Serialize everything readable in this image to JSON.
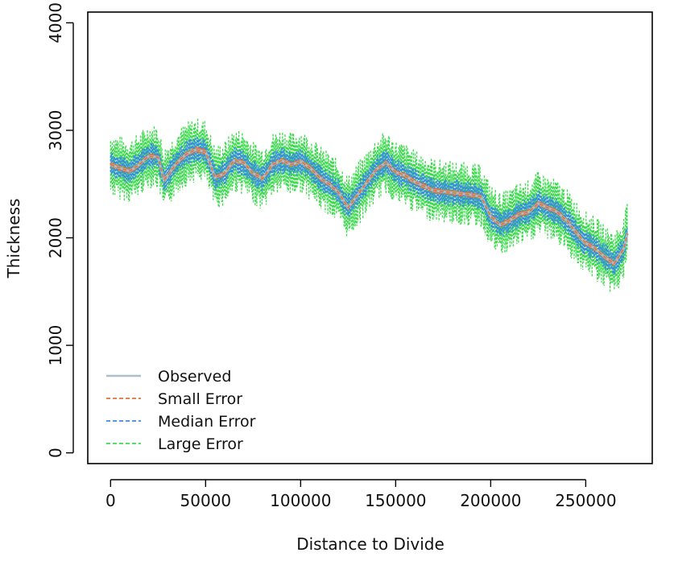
{
  "chart_data": {
    "type": "line",
    "xlabel": "Distance to Divide",
    "ylabel": "Thickness",
    "xlim": [
      -12000,
      285000
    ],
    "ylim": [
      -100,
      4100
    ],
    "x_ticks": [
      0,
      50000,
      100000,
      150000,
      200000,
      250000
    ],
    "x_tick_labels": [
      "0",
      "50000",
      "100000",
      "150000",
      "200000",
      "250000"
    ],
    "y_ticks": [
      0,
      1000,
      2000,
      3000,
      4000
    ],
    "y_tick_labels": [
      "0",
      "1000",
      "2000",
      "3000",
      "4000"
    ],
    "grid": false,
    "legend_position": "bottom-left",
    "x": [
      0,
      5000,
      10000,
      15000,
      20000,
      25000,
      28000,
      30000,
      35000,
      40000,
      45000,
      50000,
      55000,
      60000,
      65000,
      70000,
      75000,
      80000,
      85000,
      90000,
      95000,
      100000,
      105000,
      110000,
      115000,
      120000,
      125000,
      130000,
      135000,
      140000,
      145000,
      150000,
      155000,
      160000,
      165000,
      170000,
      175000,
      180000,
      185000,
      190000,
      195000,
      200000,
      205000,
      210000,
      215000,
      220000,
      225000,
      230000,
      235000,
      240000,
      245000,
      250000,
      255000,
      260000,
      265000,
      270000,
      272000
    ],
    "series": [
      {
        "name": "Observed",
        "color": "#a9bfc9",
        "y": [
          2680,
          2650,
          2620,
          2680,
          2760,
          2750,
          2540,
          2580,
          2700,
          2780,
          2820,
          2800,
          2560,
          2600,
          2720,
          2700,
          2600,
          2550,
          2680,
          2720,
          2680,
          2710,
          2650,
          2560,
          2500,
          2420,
          2280,
          2400,
          2520,
          2640,
          2700,
          2610,
          2580,
          2520,
          2480,
          2440,
          2430,
          2420,
          2410,
          2400,
          2380,
          2200,
          2120,
          2160,
          2220,
          2240,
          2320,
          2280,
          2240,
          2160,
          2050,
          1950,
          1900,
          1820,
          1760,
          1900,
          2040
        ]
      },
      {
        "name": "Small Error",
        "color": "#e0703a",
        "spread": 25,
        "y": [
          2680,
          2650,
          2620,
          2680,
          2760,
          2750,
          2540,
          2580,
          2700,
          2780,
          2820,
          2800,
          2560,
          2600,
          2720,
          2700,
          2600,
          2550,
          2680,
          2720,
          2680,
          2710,
          2650,
          2560,
          2500,
          2420,
          2280,
          2400,
          2520,
          2640,
          2700,
          2610,
          2580,
          2520,
          2480,
          2440,
          2430,
          2420,
          2410,
          2400,
          2380,
          2200,
          2120,
          2160,
          2220,
          2240,
          2320,
          2280,
          2240,
          2160,
          2050,
          1950,
          1900,
          1820,
          1760,
          1900,
          2040
        ]
      },
      {
        "name": "Median Error",
        "color": "#3a8be8",
        "spread": 110,
        "y": [
          2680,
          2650,
          2620,
          2680,
          2760,
          2750,
          2540,
          2580,
          2700,
          2780,
          2820,
          2800,
          2560,
          2600,
          2720,
          2700,
          2600,
          2550,
          2680,
          2720,
          2680,
          2710,
          2650,
          2560,
          2500,
          2420,
          2280,
          2400,
          2520,
          2640,
          2700,
          2610,
          2580,
          2520,
          2480,
          2440,
          2430,
          2420,
          2410,
          2400,
          2380,
          2200,
          2120,
          2160,
          2220,
          2240,
          2320,
          2280,
          2240,
          2160,
          2050,
          1950,
          1900,
          1820,
          1760,
          1900,
          2040
        ]
      },
      {
        "name": "Large Error",
        "color": "#3ddc4e",
        "spread": 260,
        "y": [
          2680,
          2650,
          2620,
          2680,
          2760,
          2750,
          2540,
          2580,
          2700,
          2780,
          2820,
          2800,
          2560,
          2600,
          2720,
          2700,
          2600,
          2550,
          2680,
          2720,
          2680,
          2710,
          2650,
          2560,
          2500,
          2420,
          2280,
          2400,
          2520,
          2640,
          2700,
          2610,
          2580,
          2520,
          2480,
          2440,
          2430,
          2420,
          2410,
          2400,
          2380,
          2200,
          2120,
          2160,
          2220,
          2240,
          2320,
          2280,
          2240,
          2160,
          2050,
          1950,
          1900,
          1820,
          1760,
          1900,
          2040
        ]
      }
    ]
  }
}
